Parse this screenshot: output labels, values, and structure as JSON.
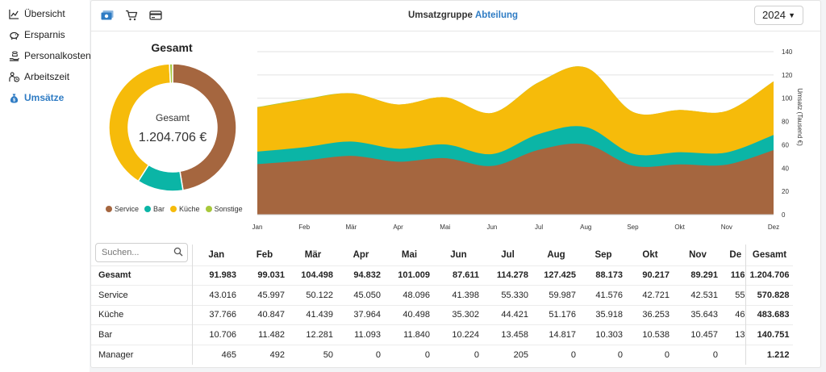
{
  "sidebar": {
    "items": [
      {
        "label": "Übersicht",
        "icon": "line-chart-icon",
        "active": false
      },
      {
        "label": "Ersparnis",
        "icon": "piggy-bank-icon",
        "active": false
      },
      {
        "label": "Personalkosten",
        "icon": "hand-coins-icon",
        "active": false
      },
      {
        "label": "Arbeitszeit",
        "icon": "time-person-icon",
        "active": false
      },
      {
        "label": "Umsätze",
        "icon": "money-bag-icon",
        "active": true
      }
    ]
  },
  "header": {
    "icons": [
      "cash-icon",
      "cart-icon",
      "credit-card-icon"
    ],
    "tabs": [
      {
        "label": "Umsatzgruppe",
        "active": false
      },
      {
        "label": "Abteilung",
        "active": true
      }
    ],
    "year": "2024"
  },
  "donut": {
    "title": "Gesamt",
    "center_label": "Gesamt",
    "center_value": "1.204.706 €",
    "legend": [
      {
        "name": "Service",
        "color": "#a5663f"
      },
      {
        "name": "Bar",
        "color": "#0bb5a6"
      },
      {
        "name": "Küche",
        "color": "#f6bb0a"
      },
      {
        "name": "Sonstige",
        "color": "#a7c83a"
      }
    ]
  },
  "chart_data": [
    {
      "type": "pie",
      "categories": [
        "Service",
        "Bar",
        "Küche",
        "Sonstige"
      ],
      "values": [
        570828,
        140751,
        483683,
        9444
      ],
      "colors": [
        "#a5663f",
        "#0bb5a6",
        "#f6bb0a",
        "#a7c83a"
      ],
      "title": "Gesamt"
    },
    {
      "type": "area",
      "stacked": true,
      "x": [
        "Jan",
        "Feb",
        "Mär",
        "Apr",
        "Mai",
        "Jun",
        "Jul",
        "Aug",
        "Sep",
        "Okt",
        "Nov",
        "Dez"
      ],
      "series": [
        {
          "name": "Service",
          "color": "#a5663f",
          "values": [
            43.0,
            46.0,
            50.1,
            45.1,
            48.1,
            41.4,
            55.3,
            60.0,
            41.6,
            42.7,
            42.5,
            55.0
          ]
        },
        {
          "name": "Bar",
          "color": "#0bb5a6",
          "values": [
            10.7,
            11.5,
            12.3,
            11.1,
            11.8,
            10.2,
            13.5,
            14.8,
            10.3,
            10.5,
            10.5,
            13.0
          ]
        },
        {
          "name": "Küche",
          "color": "#f6bb0a",
          "values": [
            37.8,
            40.8,
            41.4,
            38.0,
            40.5,
            35.3,
            44.4,
            51.2,
            35.9,
            36.3,
            35.6,
            46.0
          ]
        },
        {
          "name": "Sonstige",
          "color": "#a7c83a",
          "values": [
            0.5,
            0.5,
            0.1,
            0,
            0,
            0,
            0.2,
            0,
            0,
            0,
            0,
            0
          ]
        }
      ],
      "ylabel": "Umsatz (Tausend €)",
      "ylim": [
        0,
        140
      ],
      "yticks": [
        0,
        20,
        40,
        60,
        80,
        100,
        120,
        140
      ],
      "y_axis_side": "right",
      "grid": true
    }
  ],
  "table": {
    "search_placeholder": "Suchen...",
    "columns": [
      "Jan",
      "Feb",
      "Mär",
      "Apr",
      "Mai",
      "Jun",
      "Jul",
      "Aug",
      "Sep",
      "Okt",
      "Nov",
      "De"
    ],
    "total_header": "Gesamt",
    "rows": [
      {
        "label": "Gesamt",
        "bold": true,
        "values": [
          "91.983",
          "99.031",
          "104.498",
          "94.832",
          "101.009",
          "87.611",
          "114.278",
          "127.425",
          "88.173",
          "90.217",
          "89.291",
          "116"
        ],
        "total": "1.204.706"
      },
      {
        "label": "Service",
        "bold": false,
        "values": [
          "43.016",
          "45.997",
          "50.122",
          "45.050",
          "48.096",
          "41.398",
          "55.330",
          "59.987",
          "41.576",
          "42.721",
          "42.531",
          "55"
        ],
        "total": "570.828"
      },
      {
        "label": "Küche",
        "bold": false,
        "values": [
          "37.766",
          "40.847",
          "41.439",
          "37.964",
          "40.498",
          "35.302",
          "44.421",
          "51.176",
          "35.918",
          "36.253",
          "35.643",
          "46"
        ],
        "total": "483.683"
      },
      {
        "label": "Bar",
        "bold": false,
        "values": [
          "10.706",
          "11.482",
          "12.281",
          "11.093",
          "11.840",
          "10.224",
          "13.458",
          "14.817",
          "10.303",
          "10.538",
          "10.457",
          "13"
        ],
        "total": "140.751"
      },
      {
        "label": "Manager",
        "bold": false,
        "values": [
          "465",
          "492",
          "50",
          "0",
          "0",
          "0",
          "205",
          "0",
          "0",
          "0",
          "0",
          ""
        ],
        "total": "1.212"
      }
    ]
  }
}
